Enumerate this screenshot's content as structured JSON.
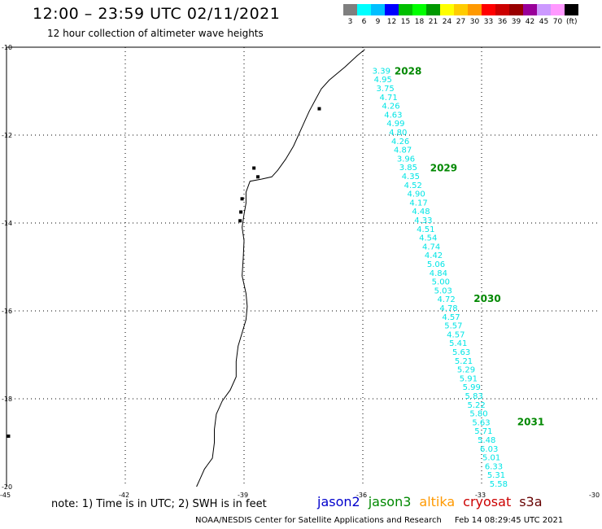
{
  "header": {
    "title": "12:00 – 23:59 UTC 02/11/2021",
    "subtitle": "12 hour collection of altimeter wave heights"
  },
  "color_scale": {
    "colors": [
      "#7f7f7f",
      "#00ffff",
      "#00bfff",
      "#0000ff",
      "#00bf00",
      "#00ff00",
      "#009900",
      "#ffff00",
      "#ffcc00",
      "#ff9900",
      "#ff0000",
      "#cc0000",
      "#990000",
      "#990099",
      "#cc99ff",
      "#ff99ff",
      "#000000"
    ],
    "labels": [
      "3",
      "6",
      "9",
      "12",
      "15",
      "18",
      "21",
      "24",
      "27",
      "30",
      "33",
      "36",
      "39",
      "42",
      "45",
      "70"
    ],
    "unit": "(ft)"
  },
  "map": {
    "lat_labels": [
      "-10",
      "-12",
      "-14",
      "-16",
      "-18",
      "-20"
    ],
    "lon_labels": [
      "-45",
      "-42",
      "-39",
      "-36",
      "-33",
      "-30"
    ],
    "colors": {
      "track_text": "#00e5e5",
      "pass_label": "#008800",
      "coast": "#000000",
      "grid": "#000000"
    },
    "passes": [
      {
        "label": "2028",
        "lat": -10.62,
        "lon": -35.2
      },
      {
        "label": "2029",
        "lat": -12.82,
        "lon": -34.3
      },
      {
        "label": "2030",
        "lat": -15.8,
        "lon": -33.2
      },
      {
        "label": "2031",
        "lat": -18.6,
        "lon": -32.1
      }
    ],
    "observations": [
      {
        "value": "3.39",
        "lat": -10.6,
        "lon": -35.76
      },
      {
        "value": "4.95",
        "lat": -10.8,
        "lon": -35.72
      },
      {
        "value": "3.75",
        "lat": -11.0,
        "lon": -35.66
      },
      {
        "value": "4.71",
        "lat": -11.2,
        "lon": -35.58
      },
      {
        "value": "4.26",
        "lat": -11.4,
        "lon": -35.52
      },
      {
        "value": "4.63",
        "lat": -11.6,
        "lon": -35.46
      },
      {
        "value": "4.99",
        "lat": -11.8,
        "lon": -35.4
      },
      {
        "value": "4.80",
        "lat": -12.0,
        "lon": -35.34
      },
      {
        "value": "4.26",
        "lat": -12.2,
        "lon": -35.28
      },
      {
        "value": "4.87",
        "lat": -12.4,
        "lon": -35.22
      },
      {
        "value": "3.96",
        "lat": -12.6,
        "lon": -35.14
      },
      {
        "value": "3.85",
        "lat": -12.8,
        "lon": -35.08
      },
      {
        "value": "4.35",
        "lat": -13.0,
        "lon": -35.02
      },
      {
        "value": "4.52",
        "lat": -13.2,
        "lon": -34.96
      },
      {
        "value": "4.90",
        "lat": -13.4,
        "lon": -34.88
      },
      {
        "value": "4.17",
        "lat": -13.6,
        "lon": -34.82
      },
      {
        "value": "4.48",
        "lat": -13.8,
        "lon": -34.76
      },
      {
        "value": "4.33",
        "lat": -14.0,
        "lon": -34.7
      },
      {
        "value": "4.51",
        "lat": -14.2,
        "lon": -34.64
      },
      {
        "value": "4.54",
        "lat": -14.4,
        "lon": -34.58
      },
      {
        "value": "4.74",
        "lat": -14.6,
        "lon": -34.5
      },
      {
        "value": "4.42",
        "lat": -14.8,
        "lon": -34.44
      },
      {
        "value": "5.06",
        "lat": -15.0,
        "lon": -34.38
      },
      {
        "value": "4.84",
        "lat": -15.2,
        "lon": -34.32
      },
      {
        "value": "5.00",
        "lat": -15.4,
        "lon": -34.26
      },
      {
        "value": "5.03",
        "lat": -15.6,
        "lon": -34.2
      },
      {
        "value": "4.72",
        "lat": -15.8,
        "lon": -34.12
      },
      {
        "value": "4.78",
        "lat": -16.0,
        "lon": -34.06
      },
      {
        "value": "4.57",
        "lat": -16.2,
        "lon": -34.0
      },
      {
        "value": "5.57",
        "lat": -16.4,
        "lon": -33.94
      },
      {
        "value": "4.57",
        "lat": -16.6,
        "lon": -33.88
      },
      {
        "value": "5.41",
        "lat": -16.8,
        "lon": -33.82
      },
      {
        "value": "5.63",
        "lat": -17.0,
        "lon": -33.74
      },
      {
        "value": "5.21",
        "lat": -17.2,
        "lon": -33.68
      },
      {
        "value": "5.29",
        "lat": -17.4,
        "lon": -33.62
      },
      {
        "value": "5.91",
        "lat": -17.6,
        "lon": -33.56
      },
      {
        "value": "5.99",
        "lat": -17.8,
        "lon": -33.48
      },
      {
        "value": "5.83",
        "lat": -18.0,
        "lon": -33.42
      },
      {
        "value": "5.22",
        "lat": -18.2,
        "lon": -33.36
      },
      {
        "value": "5.80",
        "lat": -18.4,
        "lon": -33.3
      },
      {
        "value": "5.63",
        "lat": -18.6,
        "lon": -33.24
      },
      {
        "value": "5.71",
        "lat": -18.8,
        "lon": -33.18
      },
      {
        "value": "5.48",
        "lat": -19.0,
        "lon": -33.1
      },
      {
        "value": "6.03",
        "lat": -19.2,
        "lon": -33.04
      },
      {
        "value": "5.01",
        "lat": -19.4,
        "lon": -32.98
      },
      {
        "value": "6.33",
        "lat": -19.6,
        "lon": -32.92
      },
      {
        "value": "5.31",
        "lat": -19.8,
        "lon": -32.86
      },
      {
        "value": "5.58",
        "lat": -20.0,
        "lon": -32.8
      }
    ]
  },
  "footer": {
    "note": "note: 1) Time is in UTC; 2) SWH is in feet",
    "satellites": [
      {
        "name": "jason2",
        "color": "#0000cc"
      },
      {
        "name": "jason3",
        "color": "#008800"
      },
      {
        "name": "altika",
        "color": "#ff9900"
      },
      {
        "name": "cryosat",
        "color": "#cc0000"
      },
      {
        "name": "s3a",
        "color": "#660000"
      }
    ],
    "credit": "NOAA/NESDIS Center for Satellite Applications and Research",
    "timestamp": "Feb 14 08:29:45 UTC 2021"
  }
}
